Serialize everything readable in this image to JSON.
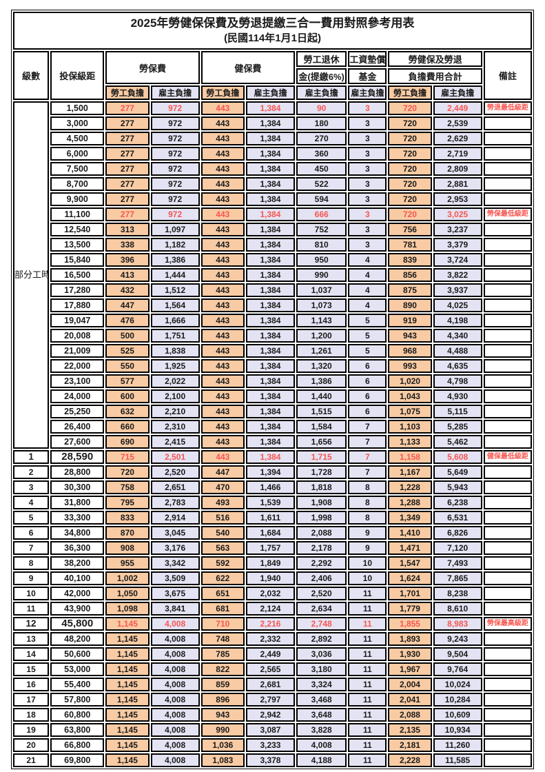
{
  "title": "2025年勞健保保費及勞退提繳三合一費用對照參考用表",
  "subtitle": "(民國114年1月1日起)",
  "colors": {
    "employee_bg": "#F8CBA4",
    "employer_bg": "#E4E3F3",
    "highlight_red": "#F75650",
    "border_color": "#000000"
  },
  "header": {
    "level": "級數",
    "bracket": "投保級距",
    "labor_insurance": "勞保費",
    "health_insurance": "健保費",
    "pension_line1": "勞工退休",
    "pension_line2": "金(提繳6%)",
    "wage_fund_line1": "工資墊償",
    "wage_fund_line2": "基金",
    "total_line1": "勞健保及勞退",
    "total_line2": "負擔費用合計",
    "remark": "備註",
    "employee": "勞工負擔",
    "employer": "雇主負擔"
  },
  "part_time_label": "部分工時",
  "rows": [
    {
      "level": "",
      "bracket": "1,500",
      "li_emp": "277",
      "li_er": "972",
      "hi_emp": "443",
      "hi_er": "1,384",
      "pension": "90",
      "wage": "3",
      "tot_emp": "720",
      "tot_er": "2,449",
      "remark": "勞退最低級距",
      "red": true,
      "big": false
    },
    {
      "level": "",
      "bracket": "3,000",
      "li_emp": "277",
      "li_er": "972",
      "hi_emp": "443",
      "hi_er": "1,384",
      "pension": "180",
      "wage": "3",
      "tot_emp": "720",
      "tot_er": "2,539",
      "remark": "",
      "red": false,
      "big": false
    },
    {
      "level": "",
      "bracket": "4,500",
      "li_emp": "277",
      "li_er": "972",
      "hi_emp": "443",
      "hi_er": "1,384",
      "pension": "270",
      "wage": "3",
      "tot_emp": "720",
      "tot_er": "2,629",
      "remark": "",
      "red": false,
      "big": false
    },
    {
      "level": "",
      "bracket": "6,000",
      "li_emp": "277",
      "li_er": "972",
      "hi_emp": "443",
      "hi_er": "1,384",
      "pension": "360",
      "wage": "3",
      "tot_emp": "720",
      "tot_er": "2,719",
      "remark": "",
      "red": false,
      "big": false
    },
    {
      "level": "",
      "bracket": "7,500",
      "li_emp": "277",
      "li_er": "972",
      "hi_emp": "443",
      "hi_er": "1,384",
      "pension": "450",
      "wage": "3",
      "tot_emp": "720",
      "tot_er": "2,809",
      "remark": "",
      "red": false,
      "big": false
    },
    {
      "level": "",
      "bracket": "8,700",
      "li_emp": "277",
      "li_er": "972",
      "hi_emp": "443",
      "hi_er": "1,384",
      "pension": "522",
      "wage": "3",
      "tot_emp": "720",
      "tot_er": "2,881",
      "remark": "",
      "red": false,
      "big": false
    },
    {
      "level": "",
      "bracket": "9,900",
      "li_emp": "277",
      "li_er": "972",
      "hi_emp": "443",
      "hi_er": "1,384",
      "pension": "594",
      "wage": "3",
      "tot_emp": "720",
      "tot_er": "2,953",
      "remark": "",
      "red": false,
      "big": false
    },
    {
      "level": "",
      "bracket": "11,100",
      "li_emp": "277",
      "li_er": "972",
      "hi_emp": "443",
      "hi_er": "1,384",
      "pension": "666",
      "wage": "3",
      "tot_emp": "720",
      "tot_er": "3,025",
      "remark": "勞保最低級距",
      "red": true,
      "big": false
    },
    {
      "level": "",
      "bracket": "12,540",
      "li_emp": "313",
      "li_er": "1,097",
      "hi_emp": "443",
      "hi_er": "1,384",
      "pension": "752",
      "wage": "3",
      "tot_emp": "756",
      "tot_er": "3,237",
      "remark": "",
      "red": false,
      "big": false
    },
    {
      "level": "",
      "bracket": "13,500",
      "li_emp": "338",
      "li_er": "1,182",
      "hi_emp": "443",
      "hi_er": "1,384",
      "pension": "810",
      "wage": "3",
      "tot_emp": "781",
      "tot_er": "3,379",
      "remark": "",
      "red": false,
      "big": false
    },
    {
      "level": "",
      "bracket": "15,840",
      "li_emp": "396",
      "li_er": "1,386",
      "hi_emp": "443",
      "hi_er": "1,384",
      "pension": "950",
      "wage": "4",
      "tot_emp": "839",
      "tot_er": "3,724",
      "remark": "",
      "red": false,
      "big": false
    },
    {
      "level": "",
      "bracket": "16,500",
      "li_emp": "413",
      "li_er": "1,444",
      "hi_emp": "443",
      "hi_er": "1,384",
      "pension": "990",
      "wage": "4",
      "tot_emp": "856",
      "tot_er": "3,822",
      "remark": "",
      "red": false,
      "big": false
    },
    {
      "level": "",
      "bracket": "17,280",
      "li_emp": "432",
      "li_er": "1,512",
      "hi_emp": "443",
      "hi_er": "1,384",
      "pension": "1,037",
      "wage": "4",
      "tot_emp": "875",
      "tot_er": "3,937",
      "remark": "",
      "red": false,
      "big": false
    },
    {
      "level": "",
      "bracket": "17,880",
      "li_emp": "447",
      "li_er": "1,564",
      "hi_emp": "443",
      "hi_er": "1,384",
      "pension": "1,073",
      "wage": "4",
      "tot_emp": "890",
      "tot_er": "4,025",
      "remark": "",
      "red": false,
      "big": false
    },
    {
      "level": "",
      "bracket": "19,047",
      "li_emp": "476",
      "li_er": "1,666",
      "hi_emp": "443",
      "hi_er": "1,384",
      "pension": "1,143",
      "wage": "5",
      "tot_emp": "919",
      "tot_er": "4,198",
      "remark": "",
      "red": false,
      "big": false
    },
    {
      "level": "",
      "bracket": "20,008",
      "li_emp": "500",
      "li_er": "1,751",
      "hi_emp": "443",
      "hi_er": "1,384",
      "pension": "1,200",
      "wage": "5",
      "tot_emp": "943",
      "tot_er": "4,340",
      "remark": "",
      "red": false,
      "big": false
    },
    {
      "level": "",
      "bracket": "21,009",
      "li_emp": "525",
      "li_er": "1,838",
      "hi_emp": "443",
      "hi_er": "1,384",
      "pension": "1,261",
      "wage": "5",
      "tot_emp": "968",
      "tot_er": "4,488",
      "remark": "",
      "red": false,
      "big": false
    },
    {
      "level": "",
      "bracket": "22,000",
      "li_emp": "550",
      "li_er": "1,925",
      "hi_emp": "443",
      "hi_er": "1,384",
      "pension": "1,320",
      "wage": "6",
      "tot_emp": "993",
      "tot_er": "4,635",
      "remark": "",
      "red": false,
      "big": false
    },
    {
      "level": "",
      "bracket": "23,100",
      "li_emp": "577",
      "li_er": "2,022",
      "hi_emp": "443",
      "hi_er": "1,384",
      "pension": "1,386",
      "wage": "6",
      "tot_emp": "1,020",
      "tot_er": "4,798",
      "remark": "",
      "red": false,
      "big": false
    },
    {
      "level": "",
      "bracket": "24,000",
      "li_emp": "600",
      "li_er": "2,100",
      "hi_emp": "443",
      "hi_er": "1,384",
      "pension": "1,440",
      "wage": "6",
      "tot_emp": "1,043",
      "tot_er": "4,930",
      "remark": "",
      "red": false,
      "big": false
    },
    {
      "level": "",
      "bracket": "25,250",
      "li_emp": "632",
      "li_er": "2,210",
      "hi_emp": "443",
      "hi_er": "1,384",
      "pension": "1,515",
      "wage": "6",
      "tot_emp": "1,075",
      "tot_er": "5,115",
      "remark": "",
      "red": false,
      "big": false
    },
    {
      "level": "",
      "bracket": "26,400",
      "li_emp": "660",
      "li_er": "2,310",
      "hi_emp": "443",
      "hi_er": "1,384",
      "pension": "1,584",
      "wage": "7",
      "tot_emp": "1,103",
      "tot_er": "5,285",
      "remark": "",
      "red": false,
      "big": false
    },
    {
      "level": "",
      "bracket": "27,600",
      "li_emp": "690",
      "li_er": "2,415",
      "hi_emp": "443",
      "hi_er": "1,384",
      "pension": "1,656",
      "wage": "7",
      "tot_emp": "1,133",
      "tot_er": "5,462",
      "remark": "",
      "red": false,
      "big": false
    },
    {
      "level": "1",
      "bracket": "28,590",
      "li_emp": "715",
      "li_er": "2,501",
      "hi_emp": "443",
      "hi_er": "1,384",
      "pension": "1,715",
      "wage": "7",
      "tot_emp": "1,158",
      "tot_er": "5,608",
      "remark": "健保最低級距",
      "red": true,
      "big": true
    },
    {
      "level": "2",
      "bracket": "28,800",
      "li_emp": "720",
      "li_er": "2,520",
      "hi_emp": "447",
      "hi_er": "1,394",
      "pension": "1,728",
      "wage": "7",
      "tot_emp": "1,167",
      "tot_er": "5,649",
      "remark": "",
      "red": false,
      "big": false
    },
    {
      "level": "3",
      "bracket": "30,300",
      "li_emp": "758",
      "li_er": "2,651",
      "hi_emp": "470",
      "hi_er": "1,466",
      "pension": "1,818",
      "wage": "8",
      "tot_emp": "1,228",
      "tot_er": "5,943",
      "remark": "",
      "red": false,
      "big": false
    },
    {
      "level": "4",
      "bracket": "31,800",
      "li_emp": "795",
      "li_er": "2,783",
      "hi_emp": "493",
      "hi_er": "1,539",
      "pension": "1,908",
      "wage": "8",
      "tot_emp": "1,288",
      "tot_er": "6,238",
      "remark": "",
      "red": false,
      "big": false
    },
    {
      "level": "5",
      "bracket": "33,300",
      "li_emp": "833",
      "li_er": "2,914",
      "hi_emp": "516",
      "hi_er": "1,611",
      "pension": "1,998",
      "wage": "8",
      "tot_emp": "1,349",
      "tot_er": "6,531",
      "remark": "",
      "red": false,
      "big": false
    },
    {
      "level": "6",
      "bracket": "34,800",
      "li_emp": "870",
      "li_er": "3,045",
      "hi_emp": "540",
      "hi_er": "1,684",
      "pension": "2,088",
      "wage": "9",
      "tot_emp": "1,410",
      "tot_er": "6,826",
      "remark": "",
      "red": false,
      "big": false
    },
    {
      "level": "7",
      "bracket": "36,300",
      "li_emp": "908",
      "li_er": "3,176",
      "hi_emp": "563",
      "hi_er": "1,757",
      "pension": "2,178",
      "wage": "9",
      "tot_emp": "1,471",
      "tot_er": "7,120",
      "remark": "",
      "red": false,
      "big": false
    },
    {
      "level": "8",
      "bracket": "38,200",
      "li_emp": "955",
      "li_er": "3,342",
      "hi_emp": "592",
      "hi_er": "1,849",
      "pension": "2,292",
      "wage": "10",
      "tot_emp": "1,547",
      "tot_er": "7,493",
      "remark": "",
      "red": false,
      "big": false
    },
    {
      "level": "9",
      "bracket": "40,100",
      "li_emp": "1,002",
      "li_er": "3,509",
      "hi_emp": "622",
      "hi_er": "1,940",
      "pension": "2,406",
      "wage": "10",
      "tot_emp": "1,624",
      "tot_er": "7,865",
      "remark": "",
      "red": false,
      "big": false
    },
    {
      "level": "10",
      "bracket": "42,000",
      "li_emp": "1,050",
      "li_er": "3,675",
      "hi_emp": "651",
      "hi_er": "2,032",
      "pension": "2,520",
      "wage": "11",
      "tot_emp": "1,701",
      "tot_er": "8,238",
      "remark": "",
      "red": false,
      "big": false
    },
    {
      "level": "11",
      "bracket": "43,900",
      "li_emp": "1,098",
      "li_er": "3,841",
      "hi_emp": "681",
      "hi_er": "2,124",
      "pension": "2,634",
      "wage": "11",
      "tot_emp": "1,779",
      "tot_er": "8,610",
      "remark": "",
      "red": false,
      "big": false
    },
    {
      "level": "12",
      "bracket": "45,800",
      "li_emp": "1,145",
      "li_er": "4,008",
      "hi_emp": "710",
      "hi_er": "2,216",
      "pension": "2,748",
      "wage": "11",
      "tot_emp": "1,855",
      "tot_er": "8,983",
      "remark": "勞保最高級距",
      "red": true,
      "big": true
    },
    {
      "level": "13",
      "bracket": "48,200",
      "li_emp": "1,145",
      "li_er": "4,008",
      "hi_emp": "748",
      "hi_er": "2,332",
      "pension": "2,892",
      "wage": "11",
      "tot_emp": "1,893",
      "tot_er": "9,243",
      "remark": "",
      "red": false,
      "big": false
    },
    {
      "level": "14",
      "bracket": "50,600",
      "li_emp": "1,145",
      "li_er": "4,008",
      "hi_emp": "785",
      "hi_er": "2,449",
      "pension": "3,036",
      "wage": "11",
      "tot_emp": "1,930",
      "tot_er": "9,504",
      "remark": "",
      "red": false,
      "big": false
    },
    {
      "level": "15",
      "bracket": "53,000",
      "li_emp": "1,145",
      "li_er": "4,008",
      "hi_emp": "822",
      "hi_er": "2,565",
      "pension": "3,180",
      "wage": "11",
      "tot_emp": "1,967",
      "tot_er": "9,764",
      "remark": "",
      "red": false,
      "big": false
    },
    {
      "level": "16",
      "bracket": "55,400",
      "li_emp": "1,145",
      "li_er": "4,008",
      "hi_emp": "859",
      "hi_er": "2,681",
      "pension": "3,324",
      "wage": "11",
      "tot_emp": "2,004",
      "tot_er": "10,024",
      "remark": "",
      "red": false,
      "big": false
    },
    {
      "level": "17",
      "bracket": "57,800",
      "li_emp": "1,145",
      "li_er": "4,008",
      "hi_emp": "896",
      "hi_er": "2,797",
      "pension": "3,468",
      "wage": "11",
      "tot_emp": "2,041",
      "tot_er": "10,284",
      "remark": "",
      "red": false,
      "big": false
    },
    {
      "level": "18",
      "bracket": "60,800",
      "li_emp": "1,145",
      "li_er": "4,008",
      "hi_emp": "943",
      "hi_er": "2,942",
      "pension": "3,648",
      "wage": "11",
      "tot_emp": "2,088",
      "tot_er": "10,609",
      "remark": "",
      "red": false,
      "big": false
    },
    {
      "level": "19",
      "bracket": "63,800",
      "li_emp": "1,145",
      "li_er": "4,008",
      "hi_emp": "990",
      "hi_er": "3,087",
      "pension": "3,828",
      "wage": "11",
      "tot_emp": "2,135",
      "tot_er": "10,934",
      "remark": "",
      "red": false,
      "big": false
    },
    {
      "level": "20",
      "bracket": "66,800",
      "li_emp": "1,145",
      "li_er": "4,008",
      "hi_emp": "1,036",
      "hi_er": "3,233",
      "pension": "4,008",
      "wage": "11",
      "tot_emp": "2,181",
      "tot_er": "11,260",
      "remark": "",
      "red": false,
      "big": false
    },
    {
      "level": "21",
      "bracket": "69,800",
      "li_emp": "1,145",
      "li_er": "4,008",
      "hi_emp": "1,083",
      "hi_er": "3,378",
      "pension": "4,188",
      "wage": "11",
      "tot_emp": "2,228",
      "tot_er": "11,585",
      "remark": "",
      "red": false,
      "big": false
    }
  ]
}
